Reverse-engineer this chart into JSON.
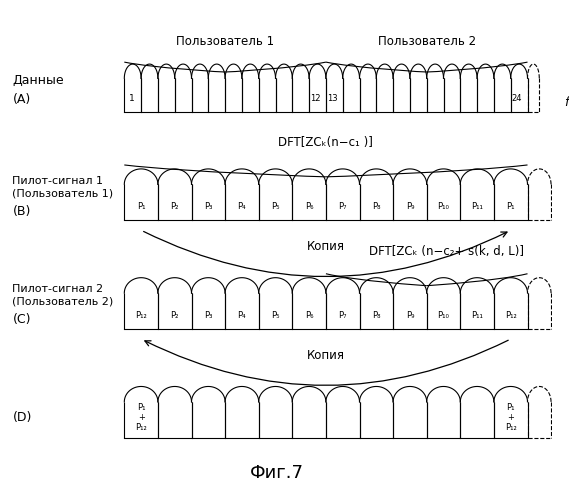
{
  "title": "Фиг.7",
  "user1_label": "Пользователь 1",
  "user2_label": "Пользователь 2",
  "data_label": "Данные",
  "row_A_label": "(A)",
  "pilot1_label": "Пилот-сигнал 1\n(Пользователь 1)",
  "row_B_label": "(B)",
  "pilot2_label": "Пилот-сигнал 2\n(Пользователь 2)",
  "row_C_label": "(C)",
  "row_D_label": "(D)",
  "dft1_label": "DFT[ZCₖ(n−c₁ )]",
  "dft2_label": "DFT[ZCₖ (n−c₂+ s(k, d, L)]",
  "copy_label": "Копия",
  "freq_label": "f",
  "bg_color": "#ffffff",
  "line_color": "#000000",
  "figsize": [
    5.69,
    5.0
  ],
  "dpi": 100
}
